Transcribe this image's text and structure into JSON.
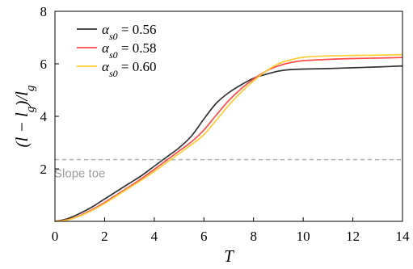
{
  "chart_data": {
    "type": "line",
    "xlabel": "T",
    "ylabel_parts": {
      "open": "(",
      "l1": "l",
      "minus": " − ",
      "l2": "l",
      "sub1": "g",
      "close": ")/",
      "l3": "l",
      "sub2": "g"
    },
    "xlim": [
      0,
      14
    ],
    "ylim": [
      0,
      8
    ],
    "xticks": [
      0,
      2,
      4,
      6,
      8,
      10,
      12,
      14
    ],
    "yticks": [
      2,
      4,
      6,
      8
    ],
    "grid": false,
    "legend_position": "top-left",
    "series": [
      {
        "name": "α_s0 = 0.56",
        "legend": {
          "greek": "α",
          "sub": "s0",
          "rest": " = 0.56"
        },
        "color": "#333333",
        "x": [
          0,
          0.5,
          1,
          1.5,
          2,
          2.5,
          3,
          3.5,
          4,
          4.5,
          5,
          5.5,
          6,
          6.5,
          7,
          7.5,
          8,
          8.5,
          9,
          9.5,
          10,
          11,
          12,
          13,
          14
        ],
        "y": [
          0,
          0.1,
          0.3,
          0.55,
          0.85,
          1.15,
          1.45,
          1.75,
          2.1,
          2.45,
          2.8,
          3.25,
          3.9,
          4.5,
          4.9,
          5.2,
          5.45,
          5.6,
          5.72,
          5.78,
          5.8,
          5.82,
          5.85,
          5.88,
          5.92
        ]
      },
      {
        "name": "α_s0 = 0.58",
        "legend": {
          "greek": "α",
          "sub": "s0",
          "rest": " = 0.58"
        },
        "color": "#ff4a4a",
        "x": [
          0,
          0.5,
          1,
          1.5,
          2,
          2.5,
          3,
          3.5,
          4,
          4.5,
          5,
          5.5,
          6,
          6.5,
          7,
          7.5,
          8,
          8.5,
          9,
          9.5,
          10,
          11,
          12,
          13,
          14
        ],
        "y": [
          0,
          0.06,
          0.22,
          0.45,
          0.72,
          1.02,
          1.32,
          1.64,
          1.98,
          2.33,
          2.68,
          3.03,
          3.48,
          4.05,
          4.6,
          5.05,
          5.42,
          5.72,
          5.92,
          6.05,
          6.12,
          6.17,
          6.2,
          6.22,
          6.24
        ]
      },
      {
        "name": "α_s0 = 0.60",
        "legend": {
          "greek": "α",
          "sub": "s0",
          "rest": " = 0.60"
        },
        "color": "#ffcc33",
        "x": [
          0,
          0.5,
          1,
          1.5,
          2,
          2.5,
          3,
          3.5,
          4,
          4.5,
          5,
          5.5,
          6,
          6.5,
          7,
          7.5,
          8,
          8.5,
          9,
          9.5,
          10,
          11,
          12,
          13,
          14
        ],
        "y": [
          0,
          0.05,
          0.2,
          0.42,
          0.68,
          0.98,
          1.28,
          1.58,
          1.9,
          2.24,
          2.58,
          2.92,
          3.3,
          3.85,
          4.42,
          4.92,
          5.35,
          5.72,
          6.0,
          6.15,
          6.25,
          6.3,
          6.32,
          6.33,
          6.35
        ]
      }
    ],
    "annotations": [
      {
        "type": "hline",
        "y": 2.35,
        "color": "#b0b0b0",
        "style": "dashed",
        "label": "Slope toe",
        "label_x": 1
      }
    ]
  }
}
